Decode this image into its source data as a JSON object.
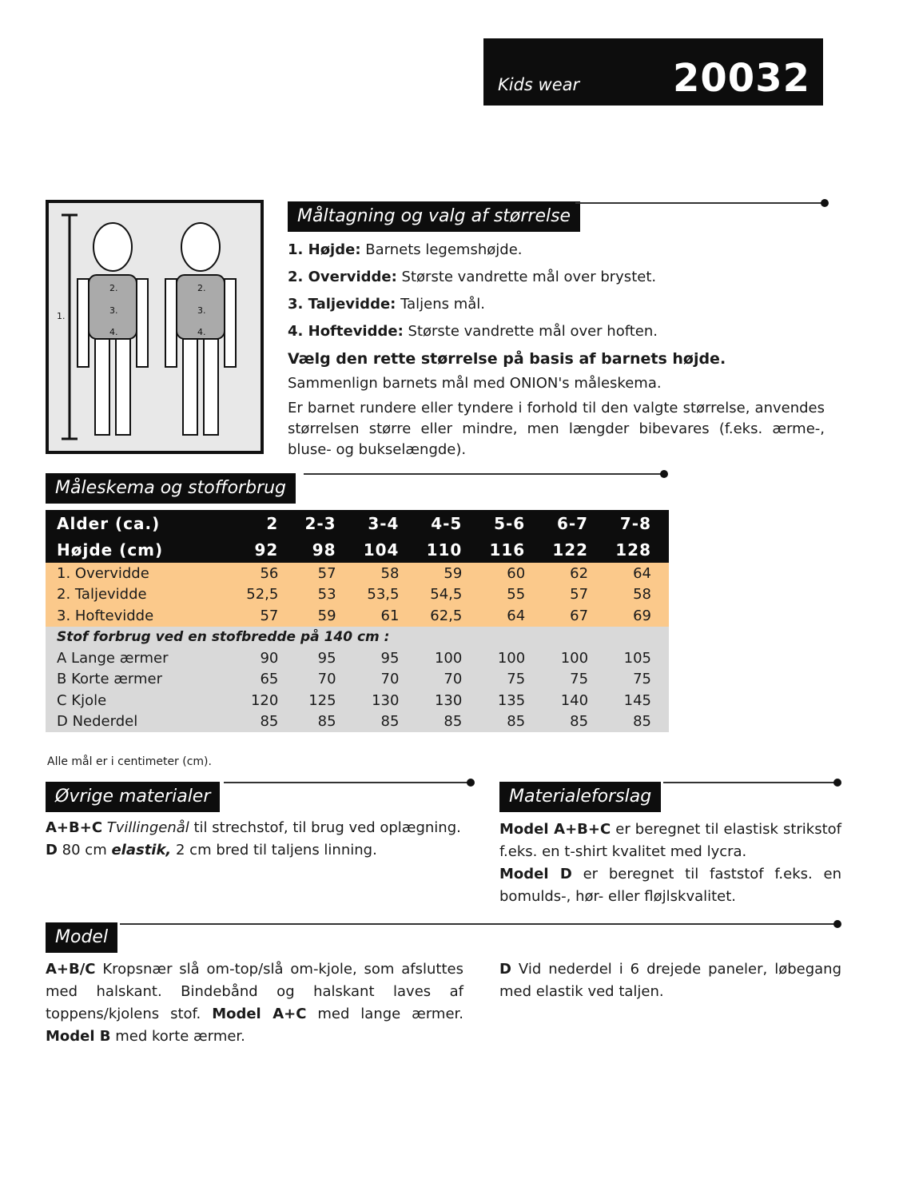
{
  "header": {
    "category": "Kids wear",
    "pattern_number": "20032"
  },
  "measuring": {
    "title": "Måltagning og valg af størrelse",
    "items": [
      {
        "label": "1. Højde:",
        "text": " Barnets legemshøjde."
      },
      {
        "label": "2. Overvidde:",
        "text": " Største vandrette mål over brystet."
      },
      {
        "label": "3. Taljevidde:",
        "text": " Taljens mål."
      },
      {
        "label": "4. Hoftevidde:",
        "text": " Største vandrette mål over hoften."
      }
    ],
    "bold_note": "Vælg den rette størrelse på basis af barnets højde.",
    "compare": "Sammenlign barnets mål med ONION's måleskema.",
    "advice": "Er barnet rundere eller tyndere i forhold til den valgte størrelse, anvendes størrelsen større eller mindre, men længder bibevares (f.eks. ærme-, bluse- og bukselængde)."
  },
  "figure": {
    "labels": [
      "1.",
      "2.",
      "3.",
      "4."
    ]
  },
  "size_chart": {
    "title": "Måleskema og stofforbrug",
    "header_rows": [
      [
        "Alder (ca.)",
        "2",
        "2-3",
        "3-4",
        "4-5",
        "5-6",
        "6-7",
        "7-8"
      ],
      [
        "Højde (cm)",
        "92",
        "98",
        "104",
        "110",
        "116",
        "122",
        "128"
      ]
    ],
    "body_rows": [
      [
        "1. Overvidde",
        "56",
        "57",
        "58",
        "59",
        "60",
        "62",
        "64"
      ],
      [
        "2. Taljevidde",
        "52,5",
        "53",
        "53,5",
        "54,5",
        "55",
        "57",
        "58"
      ],
      [
        "3. Hoftevidde",
        "57",
        "59",
        "61",
        "62,5",
        "64",
        "67",
        "69"
      ]
    ],
    "fabric_title": "Stof forbrug ved en stofbredde på 140 cm :",
    "fabric_rows": [
      [
        "A Lange ærmer",
        "90",
        "95",
        "95",
        "100",
        "100",
        "100",
        "105"
      ],
      [
        "B Korte ærmer",
        "65",
        "70",
        "70",
        "70",
        "75",
        "75",
        "75"
      ],
      [
        "C Kjole",
        "120",
        "125",
        "130",
        "130",
        "135",
        "140",
        "145"
      ],
      [
        "D Nederdel",
        "85",
        "85",
        "85",
        "85",
        "85",
        "85",
        "85"
      ]
    ],
    "note": "Alle mål er i centimeter (cm).",
    "colors": {
      "header": "#0d0d0d",
      "body": "#fbc98b",
      "fabric": "#d9d9d9"
    }
  },
  "other_materials": {
    "title": "Øvrige materialer",
    "l1_bold": "A+B+C",
    "l1_italic": " Tvillingenål",
    "l1_text": " til strechstof, til brug ved oplægning.",
    "l2_bold": "D",
    "l2_text": " 80 cm ",
    "l2_italic": "elastik,",
    "l2_text2": " 2 cm bred til taljens linning."
  },
  "material_suggestion": {
    "title": "Materialeforslag",
    "p1_bold": "Model A+B+C",
    "p1_text": " er beregnet til elastisk strikstof f.eks. en t-shirt kvalitet med lycra.",
    "p2_bold": "Model D",
    "p2_text": " er beregnet til faststof f.eks. en bomulds-, hør- eller fløjlskvalitet."
  },
  "model": {
    "title": "Model",
    "left_bold1": "A+B/C",
    "left_text1": " Kropsnær slå om-top/slå om-kjole, som afsluttes med halskant. Bindebånd og halskant laves af toppens/kjolens stof. ",
    "left_bold2": "Model A+C",
    "left_text2": " med lange ærmer. ",
    "left_bold3": "Model B",
    "left_text3": " med korte ærmer.",
    "right_bold": "D",
    "right_text": " Vid nederdel i 6 drejede paneler, løbegang med elastik ved taljen."
  }
}
